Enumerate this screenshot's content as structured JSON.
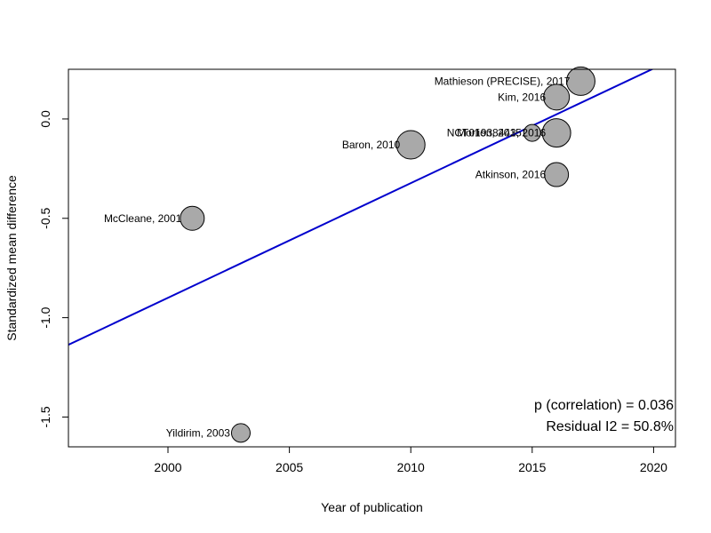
{
  "chart_data": {
    "type": "scatter",
    "title": "",
    "xlabel": "Year of publication",
    "ylabel": "Standardized mean difference",
    "xlim": [
      1995.9,
      2020.9
    ],
    "ylim": [
      -1.65,
      0.25
    ],
    "xticks": [
      2000,
      2005,
      2010,
      2015,
      2020
    ],
    "yticks": [
      -1.5,
      -1.0,
      -0.5,
      0.0
    ],
    "ytick_labels": [
      "-1.5",
      "-1.0",
      "-0.5",
      "0.0"
    ],
    "grid": false,
    "regression_line": {
      "intercept_at_2000": -0.9,
      "slope_per_year": 0.0577,
      "color": "#0000cd"
    },
    "point_fill": "#a9a9a9",
    "points": [
      {
        "label": "Mathieson (PRECISE), 2017",
        "x": 2017,
        "y": 0.19,
        "weight": 1.0
      },
      {
        "label": "Kim, 2016",
        "x": 2016,
        "y": 0.11,
        "weight": 0.85
      },
      {
        "label": "Morlion, 2015",
        "x": 2015,
        "y": -0.07,
        "weight": 0.35
      },
      {
        "label": "NCT01938443, 2016",
        "x": 2016,
        "y": -0.07,
        "weight": 1.0
      },
      {
        "label": "Baron, 2010",
        "x": 2010,
        "y": -0.13,
        "weight": 1.0
      },
      {
        "label": "Atkinson, 2016",
        "x": 2016,
        "y": -0.28,
        "weight": 0.75
      },
      {
        "label": "McCleane, 2001",
        "x": 2001,
        "y": -0.5,
        "weight": 0.75
      },
      {
        "label": "Yildirim, 2003",
        "x": 2003,
        "y": -1.58,
        "weight": 0.45
      }
    ],
    "annotations": [
      "p (correlation) = 0.036",
      "Residual I2 = 50.8%"
    ]
  }
}
